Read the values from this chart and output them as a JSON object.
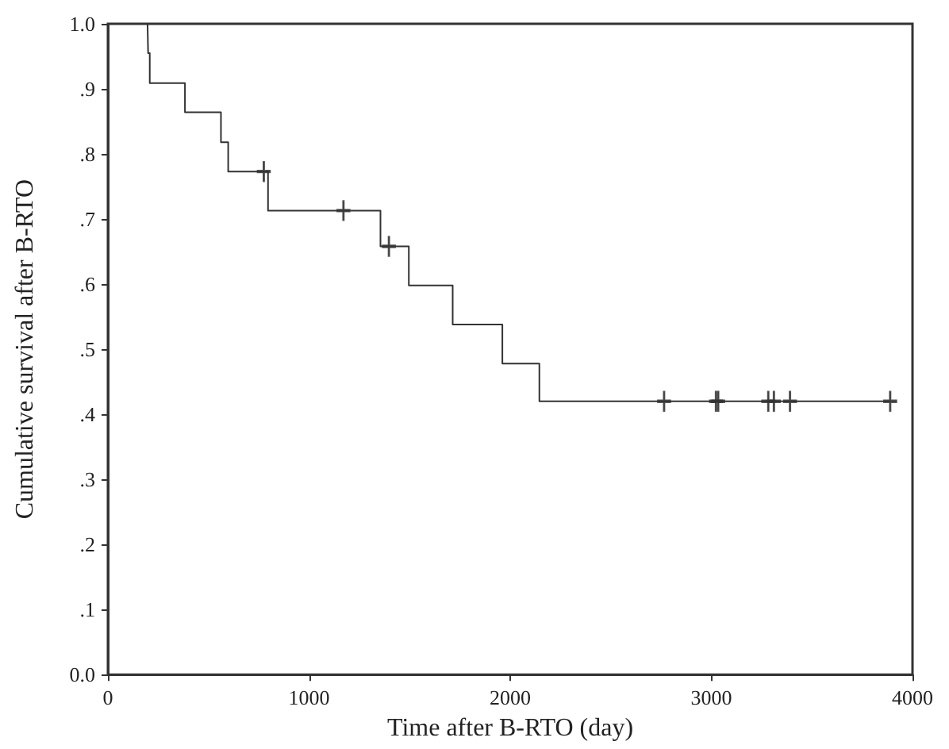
{
  "chart_data": {
    "type": "step",
    "xlabel": "Time after B-RTO (day)",
    "ylabel": "Cumulative survival after B-RTO",
    "xlim": [
      0,
      4000
    ],
    "xticks": [
      0,
      1000,
      2000,
      3000,
      4000
    ],
    "ylim": [
      0,
      1
    ],
    "yticks": [
      {
        "value": 0,
        "label": "0.0"
      },
      {
        "value": 0.1,
        "label": ".1"
      },
      {
        "value": 0.2,
        "label": ".2"
      },
      {
        "value": 0.3,
        "label": ".3"
      },
      {
        "value": 0.4,
        "label": ".4"
      },
      {
        "value": 0.5,
        "label": ".5"
      },
      {
        "value": 0.6,
        "label": ".6"
      },
      {
        "value": 0.7,
        "label": ".7"
      },
      {
        "value": 0.8,
        "label": ".8"
      },
      {
        "value": 0.9,
        "label": ".9"
      },
      {
        "value": 1,
        "label": "1.0"
      }
    ],
    "grid": false,
    "series": [
      {
        "color": "#333333",
        "marker": "none",
        "x": [
          197,
          200,
          208,
          383,
          562,
          598,
          796,
          1355,
          1496,
          1714,
          1961,
          2145,
          3889
        ],
        "values": [
          1.0,
          0.955,
          0.909,
          0.864,
          0.818,
          0.773,
          0.713,
          0.658,
          0.598,
          0.538,
          0.478,
          0.42,
          0.42
        ]
      },
      {
        "type": "scatter",
        "color": "#333333",
        "marker": "cross",
        "x": [
          775,
          1171,
          1397,
          2765,
          3023,
          3034,
          3283,
          3311,
          3391,
          3889
        ],
        "values": [
          0.773,
          0.713,
          0.658,
          0.42,
          0.42,
          0.42,
          0.42,
          0.42,
          0.42,
          0.42
        ]
      }
    ]
  }
}
